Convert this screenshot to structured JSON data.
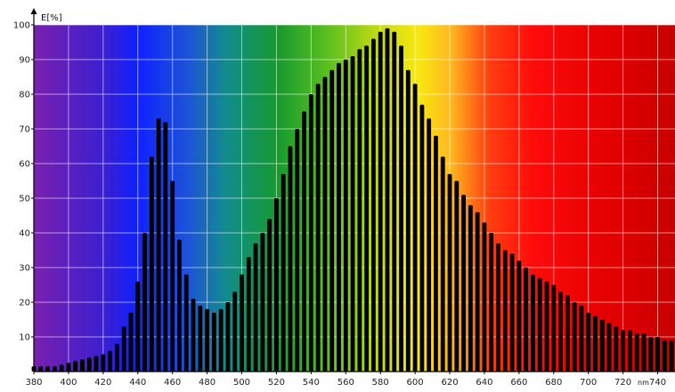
{
  "chart_data": {
    "type": "bar",
    "title": "",
    "ylabel": "E[%]",
    "xlabel": "nm",
    "xlim": [
      380,
      750
    ],
    "ylim": [
      0,
      100
    ],
    "grid": true,
    "x_ticks": [
      380,
      400,
      420,
      440,
      460,
      480,
      500,
      520,
      540,
      560,
      580,
      600,
      620,
      640,
      660,
      680,
      700,
      720,
      740
    ],
    "y_ticks": [
      10,
      20,
      30,
      40,
      50,
      60,
      70,
      80,
      90,
      100
    ],
    "x": [
      380,
      384,
      388,
      392,
      396,
      400,
      404,
      408,
      412,
      416,
      420,
      424,
      428,
      432,
      436,
      440,
      444,
      448,
      452,
      456,
      460,
      464,
      468,
      472,
      476,
      480,
      484,
      488,
      492,
      496,
      500,
      504,
      508,
      512,
      516,
      520,
      524,
      528,
      532,
      536,
      540,
      544,
      548,
      552,
      556,
      560,
      564,
      568,
      572,
      576,
      580,
      584,
      588,
      592,
      596,
      600,
      604,
      608,
      612,
      616,
      620,
      624,
      628,
      632,
      636,
      640,
      644,
      648,
      652,
      656,
      660,
      664,
      668,
      672,
      676,
      680,
      684,
      688,
      692,
      696,
      700,
      704,
      708,
      712,
      716,
      720,
      724,
      728,
      732,
      736,
      740,
      744,
      748
    ],
    "values": [
      1.5,
      1.5,
      1.5,
      1.5,
      2,
      2.5,
      3,
      3.5,
      4,
      4.5,
      5,
      6,
      8,
      13,
      17,
      26,
      40,
      62,
      73,
      72,
      55,
      38,
      28,
      21,
      19,
      18,
      17,
      18,
      20,
      23,
      28,
      33,
      37,
      40,
      44,
      50,
      57,
      65,
      70,
      75,
      80,
      83,
      85,
      87,
      89,
      90,
      91,
      93,
      94,
      96,
      98,
      99,
      98,
      94,
      87,
      83,
      77,
      73,
      68,
      62,
      57,
      55,
      51,
      48,
      46,
      43,
      40,
      37,
      35,
      34,
      32,
      30,
      28,
      27,
      26,
      25,
      23,
      22,
      20,
      19,
      17,
      16,
      15,
      14,
      13,
      12,
      12,
      11,
      11,
      10,
      10,
      9,
      9
    ]
  }
}
